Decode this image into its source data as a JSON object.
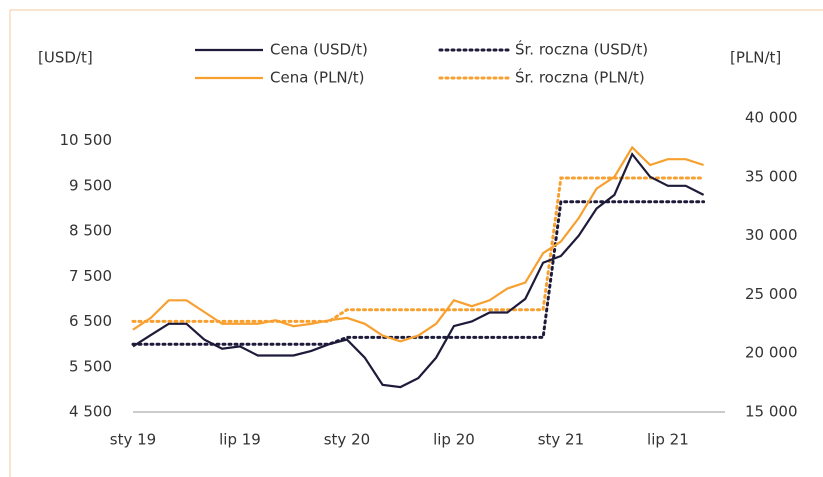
{
  "chart_data": {
    "type": "line",
    "y_label": "[USD/t]",
    "y2_label": "[PLN/t]",
    "categories": [
      "sty 19",
      null,
      null,
      null,
      null,
      null,
      "lip 19",
      null,
      null,
      null,
      null,
      null,
      "sty 20",
      null,
      null,
      null,
      null,
      null,
      "lip 20",
      null,
      null,
      null,
      null,
      null,
      "sty 21",
      null,
      null,
      null,
      null,
      null,
      "lip 21",
      null,
      null
    ],
    "series": [
      {
        "name": "Cena (USD/t)",
        "color": "#1e1b3a",
        "dashed": false,
        "values": [
          5950,
          6200,
          6450,
          6450,
          6100,
          5900,
          5950,
          5750,
          5750,
          5750,
          5850,
          6000,
          6100,
          5700,
          5100,
          5050,
          5250,
          5700,
          6400,
          6500,
          6700,
          6700,
          7000,
          7800,
          7950,
          8400,
          9000,
          9300,
          10200,
          9700,
          9500,
          9500,
          9300
        ]
      },
      {
        "name": "Cena (PLN/t)",
        "color": "#f7a030",
        "dashed": false,
        "axis": "y2",
        "values": [
          22000,
          23000,
          24500,
          24500,
          23500,
          22500,
          22500,
          22500,
          22800,
          22300,
          22500,
          22800,
          23000,
          22500,
          21500,
          21000,
          21500,
          22500,
          24500,
          24000,
          24500,
          25500,
          26000,
          28500,
          29500,
          31500,
          34000,
          35000,
          37500,
          36000,
          36500,
          36500,
          36000
        ]
      },
      {
        "name": "Śr. roczna (USD/t)",
        "color": "#1e1b3a",
        "dashed": true,
        "values": [
          6000,
          6000,
          6000,
          6000,
          6000,
          6000,
          6000,
          6000,
          6000,
          6000,
          6000,
          6000,
          6150,
          6150,
          6150,
          6150,
          6150,
          6150,
          6150,
          6150,
          6150,
          6150,
          6150,
          6150,
          9150,
          9150,
          9150,
          9150,
          9150,
          9150,
          9150,
          9150,
          9150
        ]
      },
      {
        "name": "Śr. roczna (PLN/t)",
        "color": "#f7a030",
        "dashed": true,
        "axis": "y2",
        "values": [
          22700,
          22700,
          22700,
          22700,
          22700,
          22700,
          22700,
          22700,
          22700,
          22700,
          22700,
          22700,
          23700,
          23700,
          23700,
          23700,
          23700,
          23700,
          23700,
          23700,
          23700,
          23700,
          23700,
          23700,
          34900,
          34900,
          34900,
          34900,
          34900,
          34900,
          34900,
          34900,
          34900
        ]
      }
    ],
    "ylim": [
      4500,
      11000
    ],
    "yticks": [
      {
        "value": 4500,
        "label": "4 500"
      },
      {
        "value": 5500,
        "label": "5 500"
      },
      {
        "value": 6500,
        "label": "6 500"
      },
      {
        "value": 7500,
        "label": "7 500"
      },
      {
        "value": 8500,
        "label": "8 500"
      },
      {
        "value": 9500,
        "label": "9 500"
      },
      {
        "value": 10500,
        "label": "10 500"
      }
    ],
    "y2lim": [
      15000,
      40000
    ],
    "y2ticks": [
      {
        "value": 15000,
        "label": "15 000"
      },
      {
        "value": 20000,
        "label": "20 000"
      },
      {
        "value": 25000,
        "label": "25 000"
      },
      {
        "value": 30000,
        "label": "30 000"
      },
      {
        "value": 35000,
        "label": "35 000"
      },
      {
        "value": 40000,
        "label": "40 000"
      }
    ]
  }
}
